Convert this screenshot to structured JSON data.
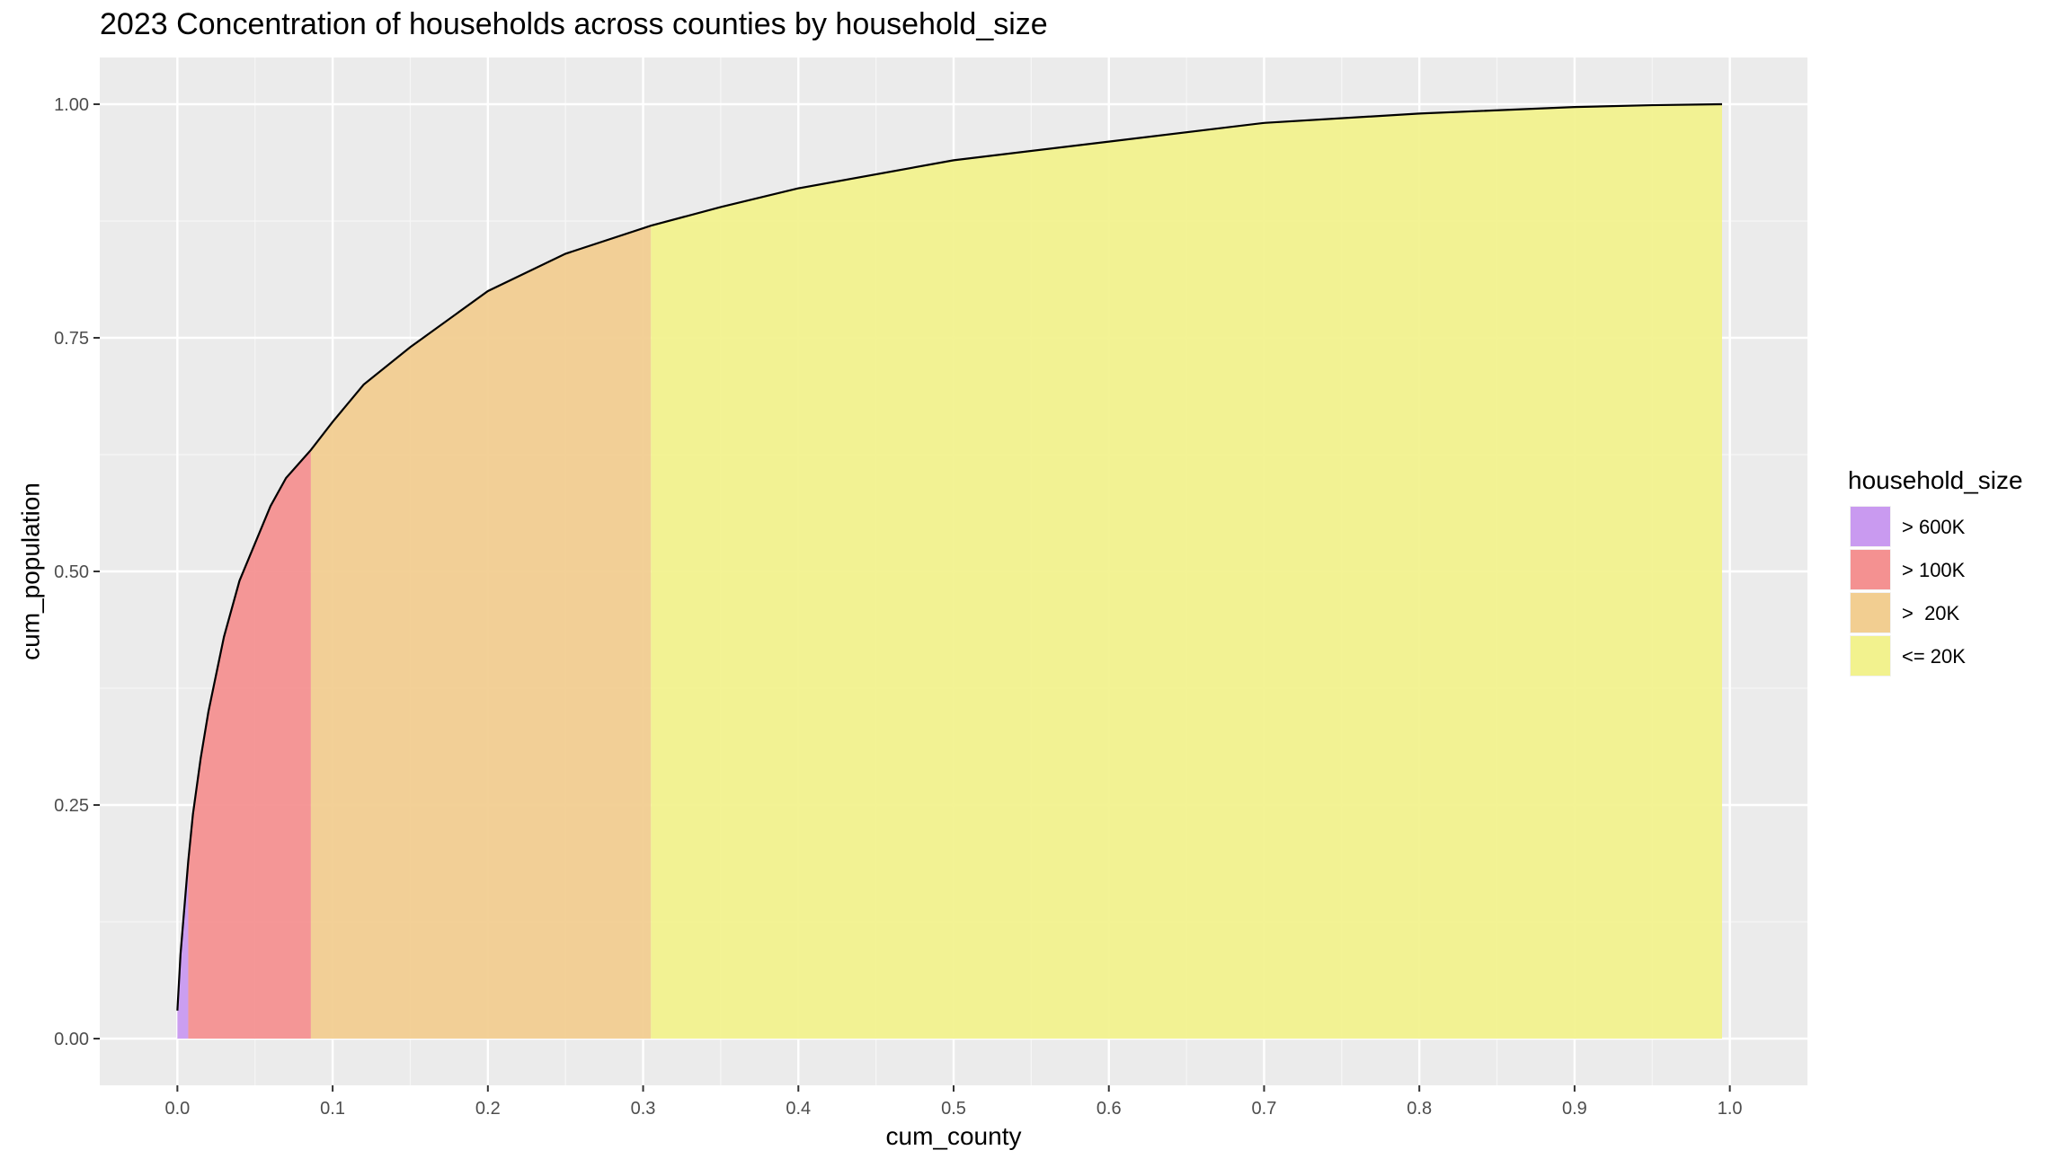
{
  "chart_data": {
    "type": "area",
    "title": "2023 Concentration of households across counties by household_size",
    "xlabel": "cum_county",
    "ylabel": "cum_population",
    "xlim": [
      -0.05,
      1.05
    ],
    "ylim": [
      -0.05,
      1.05
    ],
    "x_ticks": [
      0.0,
      0.1,
      0.2,
      0.3,
      0.4,
      0.5,
      0.6,
      0.7,
      0.8,
      0.9,
      1.0
    ],
    "x_tick_labels": [
      "0.0",
      "0.1",
      "0.2",
      "0.3",
      "0.4",
      "0.5",
      "0.6",
      "0.7",
      "0.8",
      "0.9",
      "1.0"
    ],
    "y_ticks": [
      0.0,
      0.25,
      0.5,
      0.75,
      1.0
    ],
    "y_tick_labels": [
      "0.00",
      "0.25",
      "0.50",
      "0.75",
      "1.00"
    ],
    "grid": true,
    "legend": {
      "title": "household_size",
      "position": "right"
    },
    "series": [
      {
        "name": "> 600K",
        "x_start": 0.0,
        "x_end": 0.007,
        "color": "#C99AF0"
      },
      {
        "name": "> 100K",
        "x_start": 0.007,
        "x_end": 0.086,
        "color": "#F49191"
      },
      {
        "name": ">  20K",
        "x_start": 0.086,
        "x_end": 0.305,
        "color": "#F2CE91"
      },
      {
        "name": "<= 20K",
        "x_start": 0.305,
        "x_end": 0.995,
        "color": "#F2F28E"
      }
    ],
    "curve": {
      "color": "#000000",
      "x": [
        0.0,
        0.002,
        0.005,
        0.007,
        0.01,
        0.015,
        0.02,
        0.03,
        0.04,
        0.05,
        0.06,
        0.07,
        0.086,
        0.1,
        0.12,
        0.15,
        0.2,
        0.25,
        0.305,
        0.35,
        0.4,
        0.5,
        0.6,
        0.7,
        0.8,
        0.9,
        0.95,
        0.995
      ],
      "y": [
        0.03,
        0.09,
        0.15,
        0.19,
        0.24,
        0.3,
        0.35,
        0.43,
        0.49,
        0.53,
        0.57,
        0.6,
        0.63,
        0.66,
        0.7,
        0.74,
        0.8,
        0.84,
        0.87,
        0.89,
        0.91,
        0.94,
        0.96,
        0.98,
        0.99,
        0.997,
        0.999,
        1.0
      ]
    }
  }
}
